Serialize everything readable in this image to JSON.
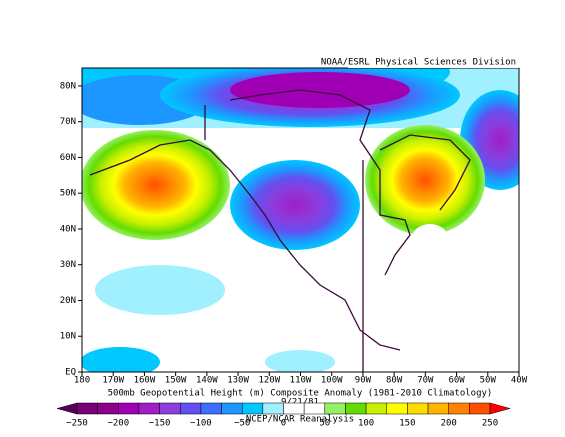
{
  "header": {
    "credit": "NOAA/ESRL Physical Sciences Division"
  },
  "map": {
    "lat_labels": [
      "EQ",
      "10N",
      "20N",
      "30N",
      "40N",
      "50N",
      "60N",
      "70N",
      "80N"
    ],
    "lon_labels": [
      "180",
      "170W",
      "160W",
      "150W",
      "140W",
      "130W",
      "120W",
      "110W",
      "100W",
      "90W",
      "80W",
      "70W",
      "60W",
      "50W",
      "40W"
    ]
  },
  "caption": {
    "title": "500mb Geopotential Height (m) Composite Anomaly (1981-2010 Climatology)",
    "date": "9/21/81",
    "source": "NCEP/NCAR Reanalysis"
  },
  "colorbar": {
    "labels": [
      "−250",
      "−200",
      "−150",
      "−100",
      "−50",
      "0",
      "50",
      "100",
      "150",
      "200",
      "250"
    ],
    "colors": [
      "#5a005a",
      "#780078",
      "#8c008c",
      "#a000b4",
      "#a01ec8",
      "#8c3cdc",
      "#6450f0",
      "#3c6eff",
      "#1e96ff",
      "#00c8ff",
      "#a0f0ff",
      "#ffffff",
      "#ffffff",
      "#96f064",
      "#64dc00",
      "#c8f000",
      "#ffff00",
      "#ffdc00",
      "#ffb400",
      "#ff8200",
      "#ff5000",
      "#ff0000"
    ]
  }
}
